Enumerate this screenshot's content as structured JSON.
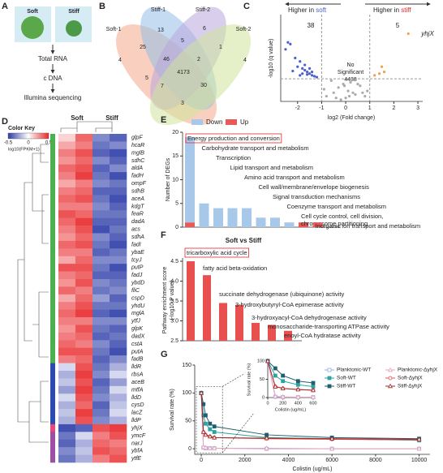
{
  "panel_labels": [
    "A",
    "B",
    "C",
    "D",
    "E",
    "F",
    "G"
  ],
  "workflow": {
    "samples": [
      "Soft",
      "Stiff"
    ],
    "steps": [
      "Total RNA",
      "c DNA",
      "Illumina sequencing"
    ]
  },
  "venn": {
    "sets": [
      "Soft-1",
      "Stiff-1",
      "Stiff-2",
      "Soft-2"
    ],
    "colors": [
      "#f4a98a",
      "#93bde6",
      "#b9a6dc",
      "#cfe39a"
    ],
    "counts": [
      13,
      6,
      25,
      5,
      1,
      4,
      46,
      2,
      4,
      4173,
      5,
      7,
      30,
      3
    ]
  },
  "heatmap": {
    "color_key_title": "Color Key",
    "color_key_ticks": [
      -0.5,
      0,
      0.5
    ],
    "color_key_label": "log10(FPKM+1)",
    "colors": [
      "#2d3da8",
      "#ffffff",
      "#e8282b"
    ],
    "groups": [
      "Soft",
      "Stiff"
    ],
    "genes": [
      "glpF",
      "hcaR",
      "mglB",
      "sdhC",
      "aldA",
      "fadH",
      "ompF",
      "sdhB",
      "aceA",
      "kdgT",
      "feaR",
      "dadA",
      "acs",
      "sdhA",
      "fadI",
      "ybaE",
      "tcyJ",
      "putP",
      "fadJ",
      "ybdD",
      "fliC",
      "cspD",
      "yhdU",
      "mglA",
      "ytfJ",
      "glpK",
      "dadX",
      "cstA",
      "putA",
      "fadB",
      "lldR",
      "rbsA",
      "aceB",
      "mtfA",
      "lldD",
      "cysD",
      "lacZ",
      "lldP",
      "yhjX",
      "ymcF",
      "narJ",
      "ybfA",
      "ytfE"
    ],
    "highlight_gene": 38,
    "highlight_color": "#e8282b",
    "row_colors": [
      "#4caf50",
      "#4caf50",
      "#4caf50",
      "#4caf50",
      "#4caf50",
      "#4caf50",
      "#4caf50",
      "#4caf50",
      "#4caf50",
      "#4caf50",
      "#4caf50",
      "#4caf50",
      "#4caf50",
      "#4caf50",
      "#4caf50",
      "#4caf50",
      "#4caf50",
      "#4caf50",
      "#4caf50",
      "#4caf50",
      "#4caf50",
      "#4caf50",
      "#4caf50",
      "#4caf50",
      "#4caf50",
      "#4caf50",
      "#4caf50",
      "#4caf50",
      "#4caf50",
      "#4caf50",
      "#2b4bb0",
      "#2b4bb0",
      "#2b4bb0",
      "#2b4bb0",
      "#2b4bb0",
      "#2b4bb0",
      "#2b4bb0",
      "#2b4bb0",
      "#e8457a",
      "#9c4fa3",
      "#9c4fa3",
      "#9c4fa3",
      "#9c4fa3"
    ],
    "values": [
      [
        0.1,
        0.35,
        -0.3,
        -0.4
      ],
      [
        0.2,
        0.3,
        -0.35,
        -0.3
      ],
      [
        0.3,
        0.4,
        -0.4,
        -0.45
      ],
      [
        0.25,
        0.35,
        -0.3,
        -0.4
      ],
      [
        0.35,
        0.4,
        -0.4,
        -0.3
      ],
      [
        0.3,
        0.45,
        -0.35,
        -0.45
      ],
      [
        0.2,
        0.3,
        -0.3,
        -0.35
      ],
      [
        0.3,
        0.35,
        -0.4,
        -0.4
      ],
      [
        0.35,
        0.4,
        -0.35,
        -0.45
      ],
      [
        0.3,
        0.3,
        -0.3,
        -0.4
      ],
      [
        0.4,
        0.35,
        -0.35,
        -0.35
      ],
      [
        0.35,
        0.45,
        -0.4,
        -0.4
      ],
      [
        0.3,
        0.4,
        -0.45,
        -0.35
      ],
      [
        0.25,
        0.35,
        -0.3,
        -0.4
      ],
      [
        0.35,
        0.4,
        -0.35,
        -0.45
      ],
      [
        0.3,
        0.3,
        -0.4,
        -0.35
      ],
      [
        0.2,
        0.35,
        -0.3,
        -0.3
      ],
      [
        0.4,
        0.4,
        -0.35,
        -0.45
      ],
      [
        0.3,
        0.35,
        -0.4,
        -0.4
      ],
      [
        0.25,
        0.4,
        -0.3,
        -0.35
      ],
      [
        0.35,
        0.3,
        -0.35,
        -0.3
      ],
      [
        0.2,
        0.35,
        -0.25,
        -0.4
      ],
      [
        0.3,
        0.4,
        -0.35,
        -0.35
      ],
      [
        0.35,
        0.45,
        -0.4,
        -0.45
      ],
      [
        0.3,
        0.3,
        -0.3,
        -0.3
      ],
      [
        0.25,
        0.4,
        -0.35,
        -0.4
      ],
      [
        0.3,
        0.35,
        -0.4,
        -0.35
      ],
      [
        0.35,
        0.3,
        -0.3,
        -0.4
      ],
      [
        0.4,
        0.4,
        -0.35,
        -0.45
      ],
      [
        0.3,
        0.35,
        -0.4,
        -0.3
      ],
      [
        -0.1,
        0.4,
        -0.35,
        -0.2
      ],
      [
        -0.2,
        0.45,
        -0.3,
        -0.1
      ],
      [
        -0.15,
        0.4,
        -0.4,
        -0.25
      ],
      [
        -0.25,
        0.45,
        -0.35,
        -0.1
      ],
      [
        -0.1,
        0.4,
        -0.3,
        -0.2
      ],
      [
        -0.2,
        0.35,
        -0.4,
        -0.15
      ],
      [
        -0.15,
        0.45,
        -0.35,
        -0.1
      ],
      [
        -0.2,
        0.4,
        -0.3,
        -0.2
      ],
      [
        -0.45,
        -0.4,
        0.4,
        0.45
      ],
      [
        -0.35,
        -0.1,
        0.3,
        0.4
      ],
      [
        -0.4,
        -0.2,
        0.35,
        0.3
      ],
      [
        -0.3,
        -0.15,
        0.4,
        0.35
      ],
      [
        -0.35,
        -0.2,
        0.3,
        0.4
      ]
    ]
  },
  "chart_data": [
    {
      "type": "scatter",
      "left_label": [
        "Higher in ",
        "soft"
      ],
      "right_label": [
        "Higher in ",
        "stiff"
      ],
      "down_count": 38,
      "up_count": 5,
      "highlight": "yhjX",
      "ns_lines": [
        "No",
        "Significant"
      ],
      "ns_count": 4438,
      "xlabel": "log2 (Fold change)",
      "ylabel": "-log10 (q value)",
      "xlim": [
        -2.7,
        3.2
      ],
      "xticks": [
        -2,
        -1,
        0,
        1,
        2,
        3
      ],
      "ylim": [
        0,
        5
      ],
      "threshold_x": [
        -1,
        1
      ],
      "threshold_y": 1.3,
      "series": [
        {
          "color": "#4a5fd0",
          "x": [
            -2.4,
            -2.3,
            -2.1,
            -1.9,
            -1.8,
            -1.7,
            -1.6,
            -1.5,
            -1.4,
            -1.3,
            -1.2,
            -2.0,
            -1.8,
            -1.6,
            -1.7,
            -1.5,
            -2.2,
            -1.9,
            -1.4,
            -2.5
          ],
          "y": [
            3.4,
            3.3,
            2.5,
            2.3,
            1.9,
            1.8,
            1.7,
            1.6,
            1.5,
            1.45,
            1.4,
            2.0,
            1.6,
            1.55,
            2.1,
            1.9,
            1.75,
            1.5,
            1.7,
            3.0
          ]
        },
        {
          "color": "#f0a050",
          "x": [
            1.2,
            1.4,
            1.6,
            1.5,
            2.6
          ],
          "y": [
            1.5,
            1.6,
            1.7,
            2.0,
            3.9
          ]
        },
        {
          "color": "#aaaaaa",
          "x": [
            -0.8,
            -0.5,
            -0.3,
            -0.1,
            0,
            0.1,
            0.2,
            0.4,
            0.6,
            0.8,
            -0.6,
            -0.2,
            0.3,
            0.5,
            -0.9,
            0.9,
            -0.4,
            0.15,
            -0.05,
            0.7
          ],
          "y": [
            0.3,
            0.5,
            0.8,
            1.0,
            0.2,
            0.6,
            1.1,
            0.4,
            0.9,
            0.3,
            1.2,
            0.1,
            0.5,
            1.0,
            0.7,
            0.6,
            0.2,
            0.3,
            0.9,
            0.5
          ]
        }
      ]
    },
    {
      "type": "bar",
      "stacked": true,
      "ylabel": "Number of DEGs",
      "ylim": [
        0,
        20
      ],
      "yticks": [
        0,
        5,
        10,
        15,
        20
      ],
      "legend": "upper left",
      "highlight": 0,
      "highlight_color": "#e8282b",
      "categories": [
        "Energy production and conversion",
        "Carbohydrate transport and metabolism",
        "Transcription",
        "Lipid transport and metabolism",
        "Amino acid transport and metabolism",
        "Cell wall/membrane/envelope biogenesis",
        "Signal transduction mechanisms",
        "Coenzyme transport and metabolism",
        [
          "Cell cycle control, cell division,",
          "chromosome partitioning"
        ],
        "Inorganic ion transport and metabolism"
      ],
      "series": [
        {
          "name": "Down",
          "color": "#a8c8ea",
          "values": [
            18,
            5,
            4,
            4,
            4,
            2,
            2,
            1,
            0,
            0
          ]
        },
        {
          "name": "Up",
          "color": "#e85a5a",
          "values": [
            1,
            0,
            0,
            0,
            0,
            0,
            0,
            0,
            1,
            1
          ]
        }
      ]
    },
    {
      "type": "bar",
      "title": "Soft vs Stiff",
      "ylabel": [
        "Pathway enrichment score",
        "(-log10 P value)"
      ],
      "ylim": [
        2.5,
        4.5
      ],
      "yticks": [
        2.5,
        {
          "value": 3,
          "label": "3.0"
        },
        3.5,
        {
          "value": 4,
          "label": "4.0"
        },
        4.5
      ],
      "color": "#e85050",
      "highlight": 0,
      "highlight_color": "#e8282b",
      "categories": [
        "tricarboxylic acid cycle",
        "fatty acid beta-oxidation",
        "succinate dehydrogenase (ubiquinone) activity",
        "3-hydroxybutyryl-CoA epimerase activity",
        "3-hydroxyacyl-CoA dehydrogenase activity",
        "monosaccharide-transporting ATPase activity",
        "enoyl-CoA hydratase activity"
      ],
      "values": [
        4.5,
        4.15,
        3.45,
        3.4,
        2.95,
        2.9,
        2.75
      ]
    },
    {
      "type": "line",
      "xlabel": "Colistin (ug/mL)",
      "ylabel": "Survival rate (%)",
      "xlim": [
        -300,
        10500
      ],
      "xticks": [
        0,
        2000,
        4000,
        6000,
        8000,
        10000
      ],
      "ylim": [
        -10,
        150
      ],
      "yticks": [
        0,
        50,
        100,
        150
      ],
      "legend": "upper right",
      "x": [
        0,
        100,
        200,
        400,
        600,
        3000,
        6000,
        10000
      ],
      "series": [
        {
          "name": "Planktonic-WT",
          "color": "#8fb0e0",
          "marker": "square-open",
          "values": [
            100,
            2,
            1,
            1,
            1,
            0,
            0,
            0
          ]
        },
        {
          "name": "Planktonic-ΔyhjX",
          "color": "#f0a0b8",
          "marker": "triangle-open",
          "values": [
            100,
            3,
            2,
            1,
            1,
            1,
            0,
            0
          ]
        },
        {
          "name": "Soft-WT",
          "color": "#2aa3a3",
          "marker": "square",
          "values": [
            100,
            60,
            45,
            35,
            30,
            20,
            18,
            15
          ]
        },
        {
          "name": "Soft-ΔyhjX",
          "color": "#e85050",
          "marker": "circle-open",
          "values": [
            100,
            30,
            25,
            22,
            20,
            18,
            17,
            16
          ]
        },
        {
          "name": "Stiff-WT",
          "color": "#1f5f6f",
          "marker": "square",
          "values": [
            100,
            80,
            60,
            45,
            40,
            25,
            20,
            18
          ]
        },
        {
          "name": "Stiff-ΔyhjX",
          "color": "#a02828",
          "marker": "triangle-open",
          "values": [
            100,
            30,
            25,
            22,
            20,
            19,
            18,
            17
          ]
        }
      ],
      "inset": {
        "xlabel": "Colistin (ug/mL)",
        "ylabel": "Survival rate (%)",
        "xlim": [
          0,
          600
        ],
        "xticks": [
          0,
          200,
          400,
          600
        ],
        "ylim": [
          0,
          100
        ],
        "yticks": [
          0,
          50,
          100
        ]
      }
    }
  ]
}
